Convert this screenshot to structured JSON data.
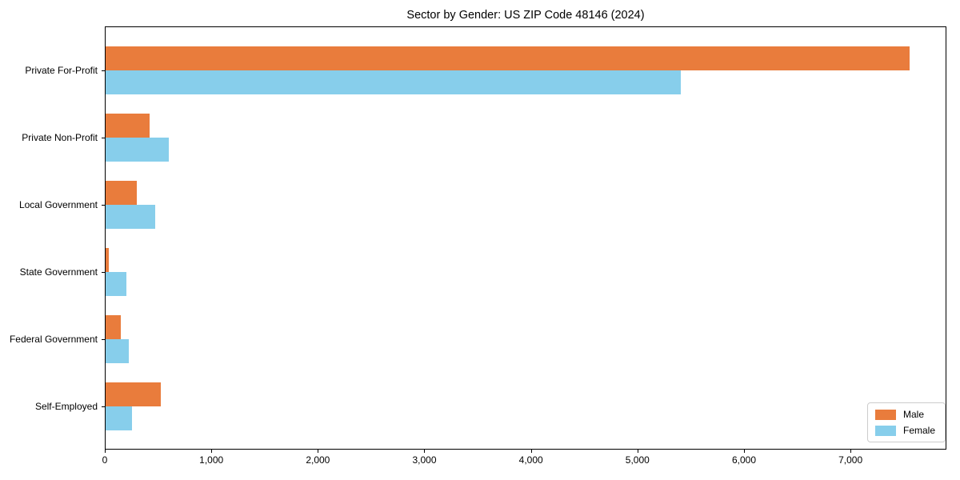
{
  "chart_data": {
    "type": "bar",
    "orientation": "horizontal",
    "title": "Sector by Gender: US ZIP Code 48146 (2024)",
    "categories": [
      "Private For-Profit",
      "Private Non-Profit",
      "Local Government",
      "State Government",
      "Federal Government",
      "Self-Employed"
    ],
    "series": [
      {
        "name": "Male",
        "color": "#e97c3c",
        "values": [
          7550,
          410,
          290,
          30,
          145,
          520
        ]
      },
      {
        "name": "Female",
        "color": "#87ceeb",
        "values": [
          5400,
          590,
          465,
          195,
          220,
          250
        ]
      }
    ],
    "xlabel": "",
    "ylabel": "",
    "xlim": [
      0,
      7900
    ],
    "xticks": [
      0,
      1000,
      2000,
      3000,
      4000,
      5000,
      6000,
      7000
    ],
    "xtick_labels": [
      "0",
      "1,000",
      "2,000",
      "3,000",
      "4,000",
      "5,000",
      "6,000",
      "7,000"
    ],
    "legend": {
      "position": "lower right",
      "entries": [
        "Male",
        "Female"
      ]
    },
    "grid": false
  }
}
